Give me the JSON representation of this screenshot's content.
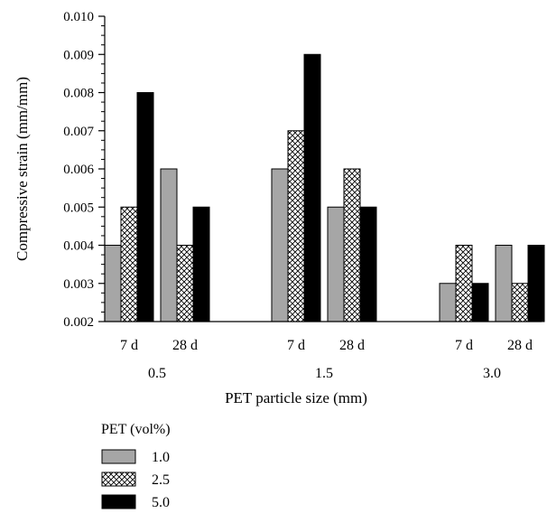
{
  "chart_data": {
    "type": "bar",
    "ylabel": "Compressive strain (mm/mm)",
    "xlabel": "PET particle size (mm)",
    "ylim": [
      0.002,
      0.01
    ],
    "yticks": [
      "0.002",
      "0.003",
      "0.004",
      "0.005",
      "0.006",
      "0.007",
      "0.008",
      "0.009",
      "0.010"
    ],
    "groups": [
      {
        "label": "0.5",
        "sub": [
          {
            "label": "7 d",
            "values": [
              0.004,
              0.005,
              0.008
            ]
          },
          {
            "label": "28 d",
            "values": [
              0.006,
              0.004,
              0.005
            ]
          }
        ]
      },
      {
        "label": "1.5",
        "sub": [
          {
            "label": "7 d",
            "values": [
              0.006,
              0.007,
              0.009
            ]
          },
          {
            "label": "28 d",
            "values": [
              0.005,
              0.006,
              0.005
            ]
          }
        ]
      },
      {
        "label": "3.0",
        "sub": [
          {
            "label": "7 d",
            "values": [
              0.003,
              0.004,
              0.003
            ]
          },
          {
            "label": "28 d",
            "values": [
              0.004,
              0.003,
              0.004
            ]
          }
        ]
      }
    ],
    "legend": {
      "title": "PET (vol%)",
      "entries": [
        {
          "name": "1.0",
          "fill": "#a6a6a6"
        },
        {
          "name": "2.5",
          "fill": "crosshatch"
        },
        {
          "name": "5.0",
          "fill": "#000000"
        }
      ]
    }
  }
}
